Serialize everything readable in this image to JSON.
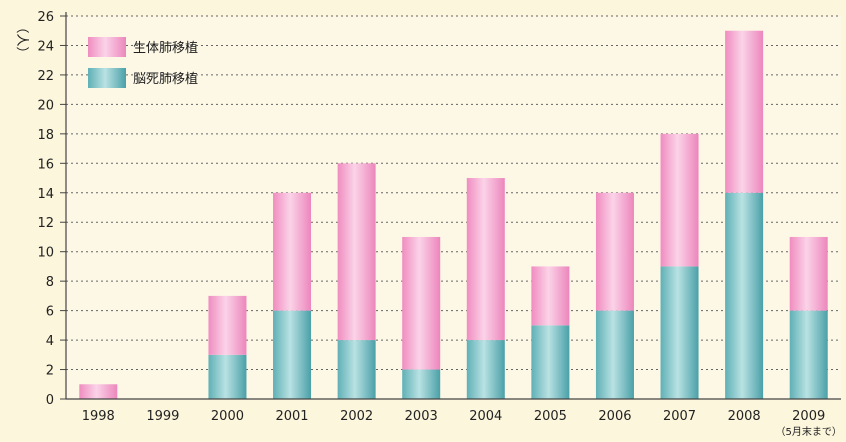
{
  "chart_data": {
    "type": "bar",
    "stacked": true,
    "categories": [
      "1998",
      "1999",
      "2000",
      "2001",
      "2002",
      "2003",
      "2004",
      "2005",
      "2006",
      "2007",
      "2008",
      "2009"
    ],
    "category_notes": {
      "2009": "（5月末まで）"
    },
    "series": [
      {
        "name": "脳死肺移植",
        "values": [
          0,
          0,
          3,
          6,
          4,
          2,
          4,
          5,
          6,
          9,
          14,
          6
        ]
      },
      {
        "name": "生体肺移植",
        "values": [
          1,
          0,
          4,
          8,
          12,
          9,
          11,
          4,
          8,
          9,
          11,
          5
        ]
      }
    ],
    "ylabel": "（人）",
    "ylim": [
      0,
      26
    ],
    "yticks": [
      0,
      2,
      4,
      6,
      8,
      10,
      12,
      14,
      16,
      18,
      20,
      22,
      24,
      26
    ],
    "grid": true,
    "legend_position": "top-left",
    "colors": {
      "脳死肺移植": "#86c8cc",
      "生体肺移植": "#f4aacf",
      "background": "#fcf6dc",
      "plot_area": "#fdf8e6",
      "grid": "#666666"
    }
  }
}
